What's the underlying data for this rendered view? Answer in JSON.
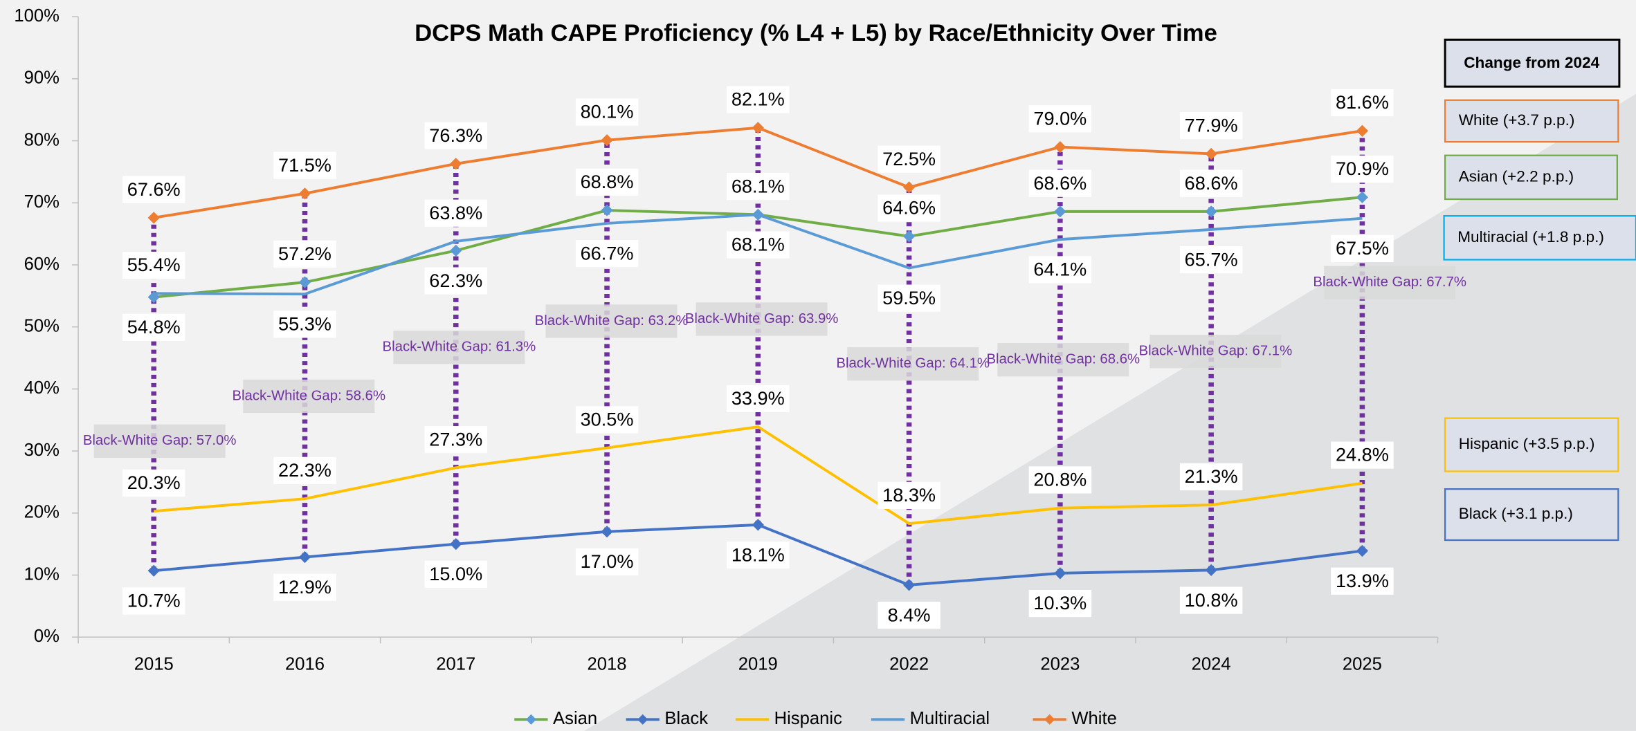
{
  "chart_data": {
    "type": "line",
    "title": "DCPS Math CAPE Proficiency (% L4 + L5)  by Race/Ethnicity Over Time",
    "categories": [
      "2015",
      "2016",
      "2017",
      "2018",
      "2019",
      "2022",
      "2023",
      "2024",
      "2025"
    ],
    "series": [
      {
        "name": "Asian",
        "color": "#70ad47",
        "marker": true,
        "marker_color": "#5b9bd5",
        "values": [
          54.8,
          57.2,
          62.3,
          68.8,
          68.1,
          64.6,
          68.6,
          68.6,
          70.9
        ],
        "value_labels": [
          "54.8%",
          "57.2%",
          "62.3%",
          "68.8%",
          "68.1%",
          "64.6%",
          "68.6%",
          "68.6%",
          "70.9%"
        ]
      },
      {
        "name": "Black",
        "color": "#4472c4",
        "marker": true,
        "marker_color": "#4472c4",
        "values": [
          10.7,
          12.9,
          15.0,
          17.0,
          18.1,
          8.4,
          10.3,
          10.8,
          13.9
        ],
        "value_labels": [
          "10.7%",
          "12.9%",
          "15.0%",
          "17.0%",
          "18.1%",
          "8.4%",
          "10.3%",
          "10.8%",
          "13.9%"
        ]
      },
      {
        "name": "Hispanic",
        "color": "#ffc000",
        "marker": false,
        "marker_color": "#ffc000",
        "values": [
          20.3,
          22.3,
          27.3,
          30.5,
          33.9,
          18.3,
          20.8,
          21.3,
          24.8
        ],
        "value_labels": [
          "20.3%",
          "22.3%",
          "27.3%",
          "30.5%",
          "33.9%",
          "18.3%",
          "20.8%",
          "21.3%",
          "24.8%"
        ]
      },
      {
        "name": "Multiracial",
        "color": "#5b9bd5",
        "marker": false,
        "marker_color": "#5b9bd5",
        "values": [
          55.4,
          55.3,
          63.8,
          66.7,
          68.1,
          59.5,
          64.1,
          65.7,
          67.5
        ],
        "value_labels": [
          "55.4%",
          "55.3%",
          "63.8%",
          "66.7%",
          "68.1%",
          "59.5%",
          "64.1%",
          "65.7%",
          "67.5%"
        ]
      },
      {
        "name": "White",
        "color": "#ed7d31",
        "marker": true,
        "marker_color": "#ed7d31",
        "values": [
          67.6,
          71.5,
          76.3,
          80.1,
          82.1,
          72.5,
          79.0,
          77.9,
          81.6
        ],
        "value_labels": [
          "67.6%",
          "71.5%",
          "76.3%",
          "80.1%",
          "82.1%",
          "72.5%",
          "79.0%",
          "77.9%",
          "81.6%"
        ]
      }
    ],
    "gap_color": "#7030a0",
    "gap_labels": [
      "Black-White Gap: 57.0%",
      "Black-White Gap: 58.6%",
      "Black-White Gap: 61.3%",
      "Black-White Gap: 63.2%",
      "Black-White Gap: 63.9%",
      "Black-White Gap: 64.1%",
      "Black-White Gap: 68.6%",
      "Black-White Gap: 67.1%",
      "Black-White Gap: 67.7%"
    ],
    "ylim": [
      0,
      100
    ],
    "yticks": [
      {
        "value": 0,
        "label": "0%"
      },
      {
        "value": 10,
        "label": "10%"
      },
      {
        "value": 20,
        "label": "20%"
      },
      {
        "value": 30,
        "label": "30%"
      },
      {
        "value": 40,
        "label": "40%"
      },
      {
        "value": 50,
        "label": "50%"
      },
      {
        "value": 60,
        "label": "60%"
      },
      {
        "value": 70,
        "label": "70%"
      },
      {
        "value": 80,
        "label": "80%"
      },
      {
        "value": 90,
        "label": "90%"
      },
      {
        "value": 100,
        "label": "100%"
      }
    ],
    "legend": "bottom",
    "change_panel": {
      "title": "Change from 2024",
      "items": [
        {
          "label": "White (+3.7 p.p.)",
          "color": "#ed7d31"
        },
        {
          "label": "Asian (+2.2 p.p.)",
          "color": "#70ad47"
        },
        {
          "label": "Multiracial (+1.8 p.p.)",
          "color": "#00b0f0"
        },
        {
          "label": "Hispanic (+3.5 p.p.)",
          "color": "#ffc000"
        },
        {
          "label": "Black (+3.1 p.p.)",
          "color": "#4472c4"
        }
      ]
    }
  }
}
